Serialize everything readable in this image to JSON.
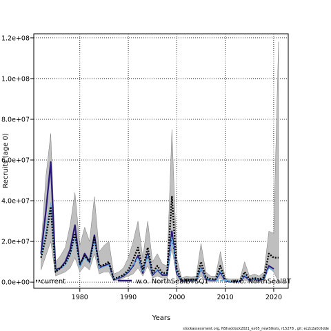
{
  "chart_data": {
    "type": "line",
    "title": "",
    "xlabel": "Years",
    "ylabel": "Recruits (age 0)",
    "xlim": [
      1970.5,
      2023
    ],
    "ylim": [
      -3000000,
      122000000
    ],
    "x_ticks": [
      1980,
      1990,
      2000,
      2010,
      2020
    ],
    "x_tick_labels": [
      "1980",
      "1990",
      "2000",
      "2010",
      "2020"
    ],
    "y_ticks": [
      0,
      20000000,
      40000000,
      60000000,
      80000000,
      100000000,
      120000000
    ],
    "y_tick_labels": [
      "0.0e+00",
      "2.0e+07",
      "4.0e+07",
      "6.0e+07",
      "8.0e+07",
      "1.0e+08",
      "1.2e+08"
    ],
    "grid": true,
    "legend": "bottom",
    "colors": {
      "band": "#bfbfbf",
      "band_edge": "#7a7a7a",
      "current": "#000000",
      "w_o_NorthSealBTSQ1": "#2b1a7a",
      "w_o_NorthSealBT": "#5fb6e8"
    },
    "x": [
      1972,
      1973,
      1974,
      1975,
      1976,
      1977,
      1978,
      1979,
      1980,
      1981,
      1982,
      1983,
      1984,
      1985,
      1986,
      1987,
      1988,
      1989,
      1990,
      1991,
      1992,
      1993,
      1994,
      1995,
      1996,
      1997,
      1998,
      1999,
      2000,
      2001,
      2002,
      2003,
      2004,
      2005,
      2006,
      2007,
      2008,
      2009,
      2010,
      2011,
      2012,
      2013,
      2014,
      2015,
      2016,
      2017,
      2018,
      2019,
      2020,
      2021
    ],
    "band": {
      "lower": [
        6000000,
        13000000,
        20000000,
        3000000,
        4000000,
        5000000,
        7000000,
        12000000,
        5000000,
        8000000,
        6000000,
        14000000,
        4000000,
        5000000,
        5000000,
        500000,
        1000000,
        2000000,
        3000000,
        4000000,
        7000000,
        3000000,
        8000000,
        2000000,
        3000000,
        2000000,
        2000000,
        17000000,
        2000000,
        300000,
        300000,
        300000,
        300000,
        3000000,
        500000,
        300000,
        300000,
        2000000,
        200000,
        100000,
        100000,
        100000,
        1000000,
        200000,
        500000,
        200000,
        500000,
        7000000,
        5000000,
        200000
      ],
      "upper": [
        17000000,
        52000000,
        73000000,
        10000000,
        13000000,
        17000000,
        28000000,
        44000000,
        18000000,
        27000000,
        20000000,
        42000000,
        15000000,
        18000000,
        20000000,
        4000000,
        5000000,
        7000000,
        12000000,
        20000000,
        30000000,
        12000000,
        30000000,
        10000000,
        14000000,
        9000000,
        8000000,
        75000000,
        12000000,
        2000000,
        3000000,
        2500000,
        3000000,
        19000000,
        5000000,
        3000000,
        3000000,
        15000000,
        2000000,
        1500000,
        1500000,
        1500000,
        10000000,
        3000000,
        4000000,
        3000000,
        5000000,
        25000000,
        24000000,
        118000000
      ]
    },
    "series": [
      {
        "name": "current",
        "values": [
          12000000,
          22000000,
          37000000,
          5000000,
          7000000,
          9000000,
          14000000,
          24000000,
          9000000,
          13000000,
          10000000,
          22000000,
          8000000,
          8500000,
          10000000,
          1500000,
          2500000,
          3500000,
          6000000,
          11000000,
          17000000,
          6000000,
          17000000,
          4500000,
          8000000,
          4500000,
          4500000,
          42000000,
          6500000,
          800000,
          1200000,
          1200000,
          1300000,
          10000000,
          2500000,
          1500000,
          1500000,
          8000000,
          1000000,
          400000,
          500000,
          500000,
          5000000,
          1500000,
          2000000,
          1500000,
          2500000,
          14000000,
          12000000,
          12000000
        ]
      },
      {
        "name": "w.o. NorthSealBTSQ1",
        "values": [
          14000000,
          35000000,
          59000000,
          6000000,
          7000000,
          10000000,
          16000000,
          28000000,
          8000000,
          14000000,
          10000000,
          23000000,
          7000000,
          8000000,
          9000000,
          1200000,
          2000000,
          3000000,
          5000000,
          8000000,
          13000000,
          4500000,
          14000000,
          3500000,
          6000000,
          3500000,
          3500000,
          25000000,
          4500000,
          500000,
          700000,
          700000,
          800000,
          7000000,
          1500000,
          1000000,
          1000000,
          5000000,
          600000,
          200000,
          300000,
          300000,
          3000000,
          1000000,
          1500000,
          1000000,
          1800000,
          8000000,
          6500000,
          null
        ]
      },
      {
        "name": "w.o. NorthSealBT",
        "values": [
          12000000,
          25000000,
          39000000,
          5500000,
          6500000,
          8500000,
          13000000,
          22000000,
          7500000,
          12000000,
          9000000,
          20000000,
          7000000,
          7500000,
          8500000,
          1300000,
          2200000,
          3200000,
          5500000,
          8500000,
          12000000,
          5000000,
          13000000,
          4000000,
          6000000,
          4000000,
          4000000,
          22000000,
          5000000,
          600000,
          800000,
          800000,
          900000,
          7000000,
          1800000,
          1200000,
          1200000,
          5500000,
          700000,
          300000,
          400000,
          400000,
          3500000,
          1200000,
          1500000,
          1200000,
          2000000,
          7000000,
          5500000,
          null
        ]
      }
    ],
    "legend_labels": [
      "current",
      "w.o. NorthSealBTSQ1",
      "w.o. NorthSealBT"
    ]
  },
  "footer": {
    "note": "stockassessment.org, NShaddock2021_ex05_newStksts, r15278 , git: ec2c2a0c6dde"
  }
}
